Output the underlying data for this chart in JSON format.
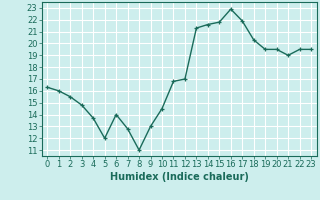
{
  "x": [
    0,
    1,
    2,
    3,
    4,
    5,
    6,
    7,
    8,
    9,
    10,
    11,
    12,
    13,
    14,
    15,
    16,
    17,
    18,
    19,
    20,
    21,
    22,
    23
  ],
  "y": [
    16.3,
    16.0,
    15.5,
    14.8,
    13.7,
    12.0,
    14.0,
    12.8,
    11.0,
    13.0,
    14.5,
    16.8,
    17.0,
    21.3,
    21.6,
    21.8,
    22.9,
    21.9,
    20.3,
    19.5,
    19.5,
    19.0,
    19.5,
    19.5
  ],
  "line_color": "#1a6b5a",
  "marker": "+",
  "marker_size": 3.5,
  "bg_color": "#cdeeed",
  "grid_color": "#ffffff",
  "xlabel": "Humidex (Indice chaleur)",
  "xlabel_fontsize": 7,
  "ylabel_ticks": [
    11,
    12,
    13,
    14,
    15,
    16,
    17,
    18,
    19,
    20,
    21,
    22,
    23
  ],
  "xtick_labels": [
    "0",
    "1",
    "2",
    "3",
    "4",
    "5",
    "6",
    "7",
    "8",
    "9",
    "10",
    "11",
    "12",
    "13",
    "14",
    "15",
    "16",
    "17",
    "18",
    "19",
    "20",
    "21",
    "22",
    "23"
  ],
  "ylim": [
    10.5,
    23.5
  ],
  "xlim": [
    -0.5,
    23.5
  ],
  "tick_color": "#1a6b5a",
  "tick_fontsize": 6,
  "line_width": 1.0
}
